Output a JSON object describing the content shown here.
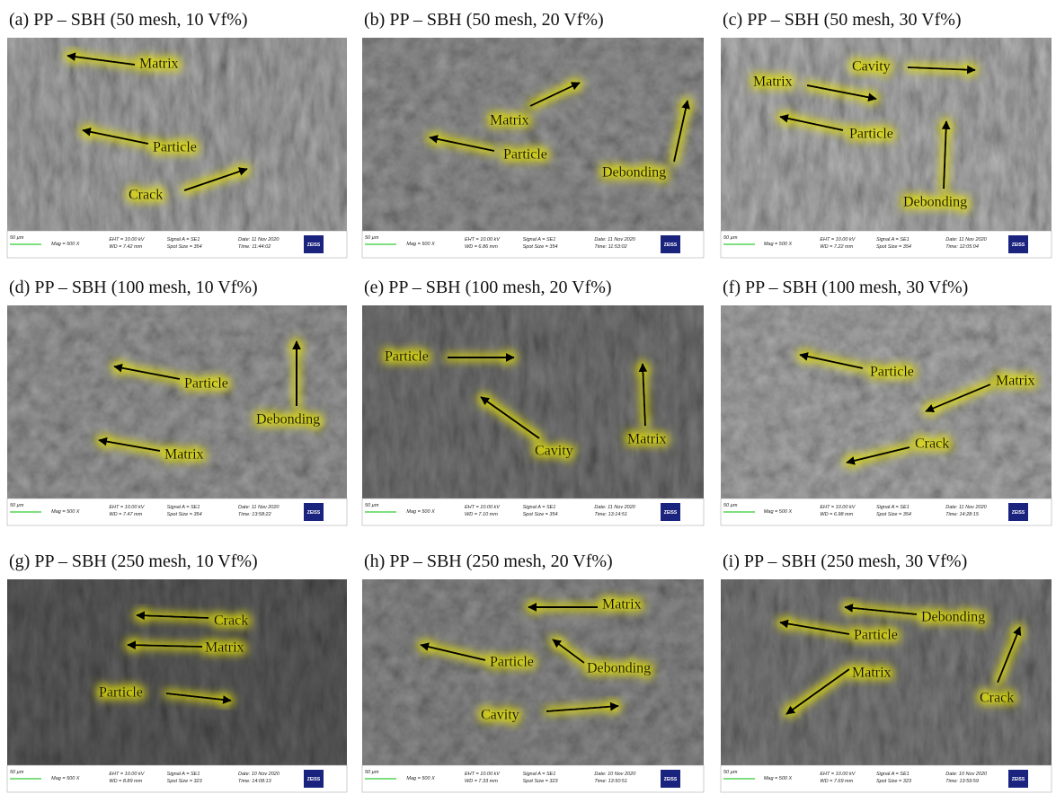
{
  "panels": [
    {
      "title": "(a) PP – SBH (50 mesh, 10 Vf%)",
      "labels": [
        "Matrix",
        "Particle",
        "Crack"
      ],
      "info": {
        "scale": "50 µm",
        "mag": "Mag =   500 X",
        "eht": "EHT = 10.00 kV",
        "wd": "WD = 7.42 mm",
        "signal": "Signal A = SE1",
        "spot": "Spot Size = 354",
        "date": "Date: 11 Nov 2020",
        "time": "Time: 11:44:02",
        "logo": "ZEISS"
      }
    },
    {
      "title": "(b) PP – SBH (50 mesh, 20 Vf%)",
      "labels": [
        "Matrix",
        "Particle",
        "Debonding"
      ],
      "info": {
        "scale": "50 µm",
        "mag": "Mag =   500 X",
        "eht": "EHT = 10.00 kV",
        "wd": "WD = 6.86 mm",
        "signal": "Signal A = SE1",
        "spot": "Spot Size = 354",
        "date": "Date: 11 Nov 2020",
        "time": "Time: 11:53:02",
        "logo": "ZEISS"
      }
    },
    {
      "title": "(c) PP – SBH (50 mesh, 30 Vf%)",
      "labels": [
        "Cavity",
        "Matrix",
        "Particle",
        "Debonding"
      ],
      "info": {
        "scale": "50 µm",
        "mag": "Mag =   500 X",
        "eht": "EHT = 10.00 kV",
        "wd": "WD = 7.22 mm",
        "signal": "Signal A = SE1",
        "spot": "Spot Size = 354",
        "date": "Date: 11 Nov 2020",
        "time": "Time: 12:05:04",
        "logo": "ZEISS"
      }
    },
    {
      "title": "(d) PP – SBH (100 mesh, 10 Vf%)",
      "labels": [
        "Particle",
        "Debonding",
        "Matrix"
      ],
      "info": {
        "scale": "50 µm",
        "mag": "Mag =   500 X",
        "eht": "EHT = 10.00 kV",
        "wd": "WD = 7.47 mm",
        "signal": "Signal A = SE1",
        "spot": "Spot Size = 354",
        "date": "Date: 11 Nov 2020",
        "time": "Time: 13:58:22",
        "logo": "ZEISS"
      }
    },
    {
      "title": "(e) PP – SBH (100 mesh, 20 Vf%)",
      "labels": [
        "Particle",
        "Cavity",
        "Matrix"
      ],
      "info": {
        "scale": "50 µm",
        "mag": "Mag =   500 X",
        "eht": "EHT = 10.00 kV",
        "wd": "WD = 7.10 mm",
        "signal": "Signal A = SE1",
        "spot": "Spot Size = 354",
        "date": "Date: 11 Nov 2020",
        "time": "Time: 13:14:51",
        "logo": "ZEISS"
      }
    },
    {
      "title": "(f) PP – SBH (100 mesh, 30 Vf%)",
      "labels": [
        "Particle",
        "Matrix",
        "Crack"
      ],
      "info": {
        "scale": "50 µm",
        "mag": "Mag =   500 X",
        "eht": "EHT = 10.00 kV",
        "wd": "WD = 6.98 mm",
        "signal": "Signal A = SE1",
        "spot": "Spot Size = 354",
        "date": "Date: 11 Nov 2020",
        "time": "Time: 14:28:15",
        "logo": "ZEISS"
      }
    },
    {
      "title": "(g) PP – SBH (250 mesh, 10 Vf%)",
      "labels": [
        "Crack",
        "Matrix",
        "Particle"
      ],
      "info": {
        "scale": "50 µm",
        "mag": "Mag =   500 X",
        "eht": "EHT = 10.00 kV",
        "wd": "WD = 8.89 mm",
        "signal": "Signal A = SE1",
        "spot": "Spot Size = 323",
        "date": "Date: 10 Nov 2020",
        "time": "Time: 14:08:13",
        "logo": "ZEISS"
      }
    },
    {
      "title": "(h) PP – SBH (250 mesh, 20 Vf%)",
      "labels": [
        "Matrix",
        "Particle",
        "Debonding",
        "Cavity"
      ],
      "info": {
        "scale": "50 µm",
        "mag": "Mag =   500 X",
        "eht": "EHT = 10.00 kV",
        "wd": "WD = 7.33 mm",
        "signal": "Signal A = SE1",
        "spot": "Spot Size = 323",
        "date": "Date: 10 Nov 2020",
        "time": "Time: 13:50:51",
        "logo": "ZEISS"
      }
    },
    {
      "title": "(i) PP – SBH (250 mesh, 30 Vf%)",
      "labels": [
        "Debonding",
        "Particle",
        "Matrix",
        "Crack"
      ],
      "info": {
        "scale": "50 µm",
        "mag": "Mag =   500 X",
        "eht": "EHT = 10.00 kV",
        "wd": "WD = 7.69 mm",
        "signal": "Signal A = SE1",
        "spot": "Spot Size = 323",
        "date": "Date: 10 Nov 2020",
        "time": "Time: 13:59:59",
        "logo": "ZEISS"
      }
    }
  ]
}
